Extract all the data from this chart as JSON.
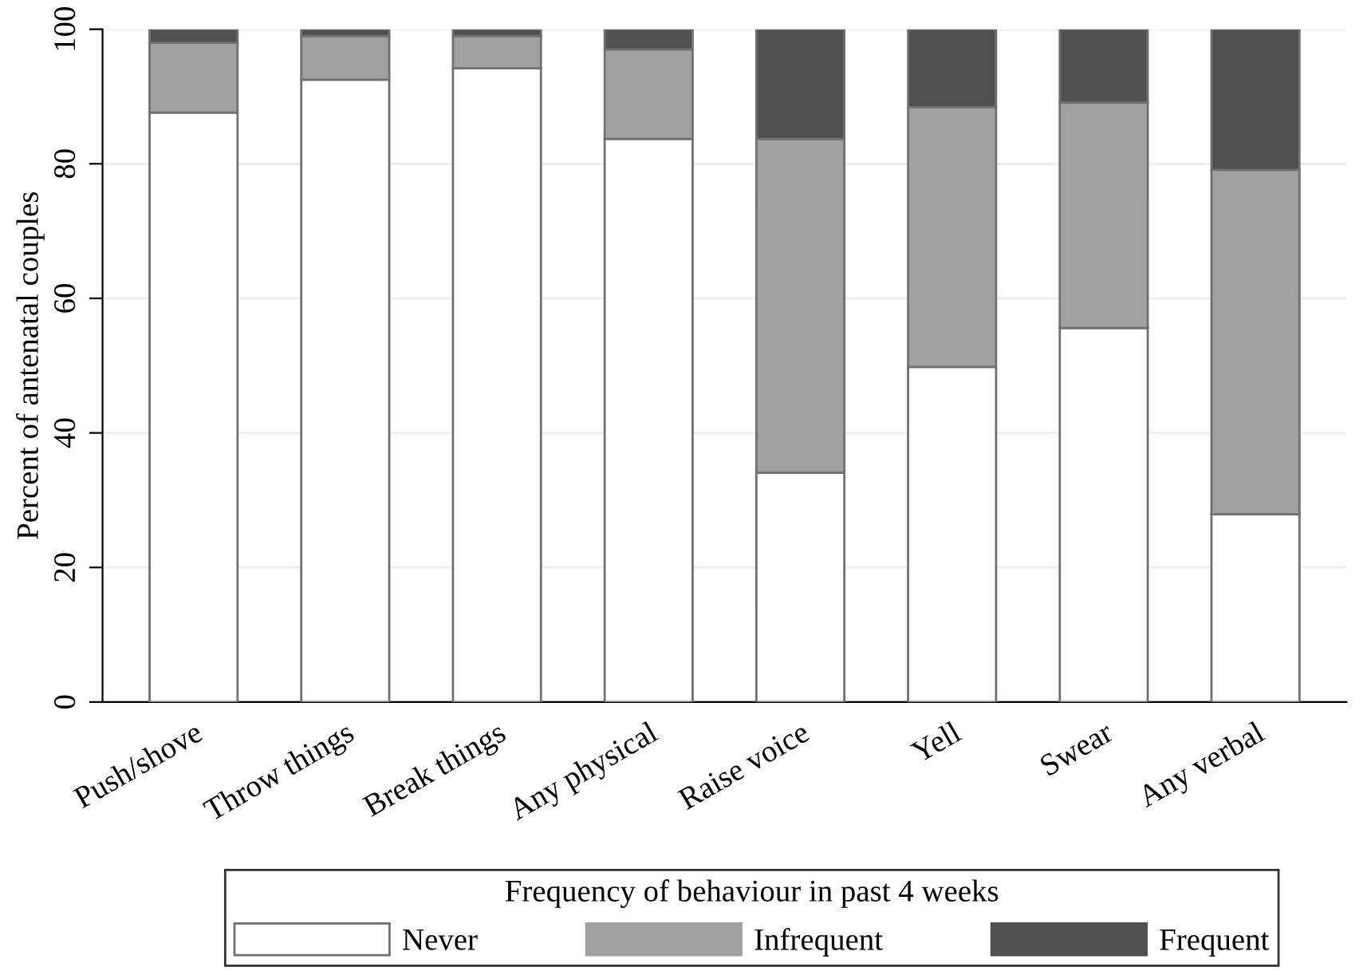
{
  "chart_data": {
    "type": "bar",
    "stacked": true,
    "ylabel": "Percent of antenatal couples",
    "legend_title": "Frequency of behaviour in past 4 weeks",
    "legend": "bottom",
    "grid": "y",
    "categories": [
      "Push/shove",
      "Throw things",
      "Break things",
      "Any physical",
      "Raise voice",
      "Yell",
      "Swear",
      "Any verbal"
    ],
    "ylim": [
      0,
      100
    ],
    "yticks": [
      0,
      20,
      40,
      60,
      80,
      100
    ],
    "series": [
      {
        "name": "Never",
        "color": "#ffffff",
        "values": [
          87.6,
          92.5,
          94.2,
          83.7,
          34.1,
          49.8,
          55.6,
          27.9
        ]
      },
      {
        "name": "Infrequent",
        "color": "#a0a0a0",
        "values": [
          10.4,
          6.5,
          4.8,
          13.3,
          49.6,
          38.6,
          33.5,
          51.2
        ]
      },
      {
        "name": "Frequent",
        "color": "#505050",
        "values": [
          2.0,
          1.0,
          1.0,
          3.0,
          16.3,
          11.6,
          10.9,
          20.9
        ]
      }
    ]
  }
}
